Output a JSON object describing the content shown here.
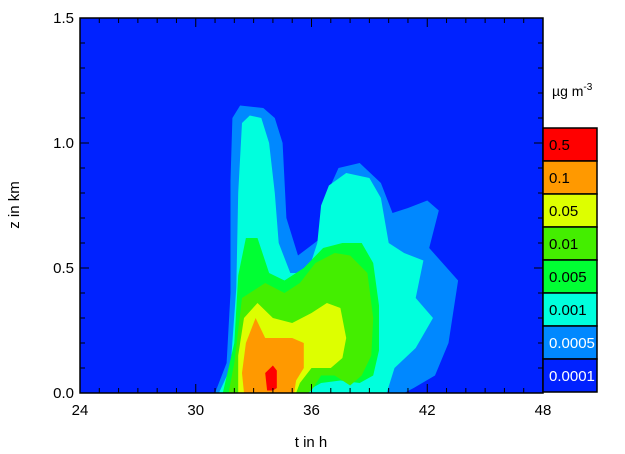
{
  "chart_data": {
    "type": "heatmap",
    "xlabel": "t in h",
    "ylabel": "z in km",
    "xlim": [
      24,
      48
    ],
    "ylim": [
      0.0,
      1.5
    ],
    "x_ticks": [
      24,
      30,
      36,
      42,
      48
    ],
    "y_ticks": [
      "0.0",
      "0.5",
      "1.0",
      "1.5"
    ],
    "colorbar": {
      "unit_base": "µg m",
      "unit_exponent": "-3",
      "levels": [
        {
          "label": "0.5",
          "value": 0.5,
          "color": "#ff0000",
          "text_color": "#000000"
        },
        {
          "label": "0.1",
          "value": 0.1,
          "color": "#ff9900",
          "text_color": "#000000"
        },
        {
          "label": "0.05",
          "value": 0.05,
          "color": "#ddff00",
          "text_color": "#000000"
        },
        {
          "label": "0.01",
          "value": 0.01,
          "color": "#44ee00",
          "text_color": "#000000"
        },
        {
          "label": "0.005",
          "value": 0.005,
          "color": "#00ff33",
          "text_color": "#000000"
        },
        {
          "label": "0.001",
          "value": 0.001,
          "color": "#00ffdd",
          "text_color": "#000000"
        },
        {
          "label": "0.0005",
          "value": 0.0005,
          "color": "#0088ff",
          "text_color": "#ffffff"
        },
        {
          "label": "0.0001",
          "value": 0.0001,
          "color": "#0022ff",
          "text_color": "#ffffff"
        }
      ]
    },
    "background_color": "#0022ff",
    "contours": [
      {
        "level": 0.0005,
        "points": [
          [
            31.0,
            0
          ],
          [
            31.6,
            0.12
          ],
          [
            31.8,
            0.4
          ],
          [
            31.8,
            0.85
          ],
          [
            31.9,
            1.1
          ],
          [
            32.3,
            1.15
          ],
          [
            33.5,
            1.14
          ],
          [
            34.1,
            1.1
          ],
          [
            34.5,
            1.0
          ],
          [
            34.7,
            0.7
          ],
          [
            35.3,
            0.55
          ],
          [
            36.5,
            0.62
          ],
          [
            36.7,
            0.78
          ],
          [
            37.4,
            0.9
          ],
          [
            38.5,
            0.92
          ],
          [
            39.6,
            0.84
          ],
          [
            40.2,
            0.72
          ],
          [
            41.0,
            0.74
          ],
          [
            42.0,
            0.77
          ],
          [
            42.6,
            0.73
          ],
          [
            42.1,
            0.58
          ],
          [
            43.6,
            0.45
          ],
          [
            43.1,
            0.2
          ],
          [
            42.4,
            0.07
          ],
          [
            41.3,
            0.02
          ],
          [
            40.8,
            0
          ]
        ]
      },
      {
        "level": 0.001,
        "points": [
          [
            31.2,
            0
          ],
          [
            31.8,
            0.1
          ],
          [
            32.1,
            0.42
          ],
          [
            32.2,
            0.8
          ],
          [
            32.4,
            1.08
          ],
          [
            32.8,
            1.11
          ],
          [
            33.4,
            1.1
          ],
          [
            33.8,
            1.0
          ],
          [
            34.1,
            0.8
          ],
          [
            34.3,
            0.6
          ],
          [
            34.9,
            0.48
          ],
          [
            35.8,
            0.48
          ],
          [
            36.3,
            0.6
          ],
          [
            36.5,
            0.75
          ],
          [
            36.9,
            0.83
          ],
          [
            37.8,
            0.88
          ],
          [
            39.0,
            0.86
          ],
          [
            39.6,
            0.78
          ],
          [
            40.0,
            0.6
          ],
          [
            40.8,
            0.56
          ],
          [
            41.8,
            0.53
          ],
          [
            41.4,
            0.38
          ],
          [
            42.3,
            0.3
          ],
          [
            41.4,
            0.18
          ],
          [
            40.3,
            0.1
          ],
          [
            39.9,
            0
          ]
        ]
      },
      {
        "level": 0.005,
        "points": [
          [
            31.4,
            0
          ],
          [
            32.0,
            0.2
          ],
          [
            32.2,
            0.47
          ],
          [
            32.6,
            0.62
          ],
          [
            33.2,
            0.62
          ],
          [
            33.8,
            0.48
          ],
          [
            34.6,
            0.45
          ],
          [
            35.6,
            0.5
          ],
          [
            36.6,
            0.58
          ],
          [
            37.6,
            0.6
          ],
          [
            38.6,
            0.6
          ],
          [
            39.2,
            0.52
          ],
          [
            39.5,
            0.35
          ],
          [
            39.5,
            0.17
          ],
          [
            39.2,
            0.07
          ],
          [
            38.5,
            0.04
          ],
          [
            37.5,
            0.05
          ],
          [
            36.5,
            0.04
          ],
          [
            35.8,
            0.01
          ],
          [
            35.5,
            0
          ]
        ]
      },
      {
        "level": 0.01,
        "points": [
          [
            31.7,
            0
          ],
          [
            32.0,
            0.12
          ],
          [
            32.4,
            0.38
          ],
          [
            33.6,
            0.44
          ],
          [
            34.6,
            0.4
          ],
          [
            35.4,
            0.44
          ],
          [
            36.2,
            0.52
          ],
          [
            37.2,
            0.56
          ],
          [
            38.0,
            0.55
          ],
          [
            38.9,
            0.48
          ],
          [
            39.2,
            0.3
          ],
          [
            39.1,
            0.15
          ],
          [
            38.6,
            0.07
          ],
          [
            38.0,
            0.03
          ],
          [
            37.2,
            0.07
          ],
          [
            36.5,
            0.07
          ],
          [
            36.0,
            0.01
          ],
          [
            35.8,
            0
          ]
        ]
      },
      {
        "level": 0.05,
        "points": [
          [
            32.2,
            0
          ],
          [
            32.2,
            0.15
          ],
          [
            32.5,
            0.3
          ],
          [
            33.2,
            0.36
          ],
          [
            34.0,
            0.3
          ],
          [
            35.0,
            0.28
          ],
          [
            36.0,
            0.32
          ],
          [
            36.8,
            0.36
          ],
          [
            37.5,
            0.34
          ],
          [
            37.8,
            0.22
          ],
          [
            37.6,
            0.14
          ],
          [
            37.0,
            0.1
          ],
          [
            36.0,
            0.1
          ],
          [
            35.4,
            0.04
          ],
          [
            35.2,
            0
          ]
        ]
      },
      {
        "level": 0.1,
        "points": [
          [
            32.5,
            0
          ],
          [
            32.4,
            0.08
          ],
          [
            32.6,
            0.2
          ],
          [
            33.1,
            0.3
          ],
          [
            33.6,
            0.22
          ],
          [
            35.0,
            0.22
          ],
          [
            35.6,
            0.2
          ],
          [
            35.6,
            0.1
          ],
          [
            35.2,
            0.05
          ],
          [
            35.1,
            0
          ]
        ]
      },
      {
        "level": 0.5,
        "points": [
          [
            33.7,
            0.01
          ],
          [
            33.6,
            0.08
          ],
          [
            34.0,
            0.11
          ],
          [
            34.2,
            0.09
          ],
          [
            34.2,
            0.02
          ],
          [
            34.0,
            0.01
          ]
        ]
      }
    ]
  }
}
